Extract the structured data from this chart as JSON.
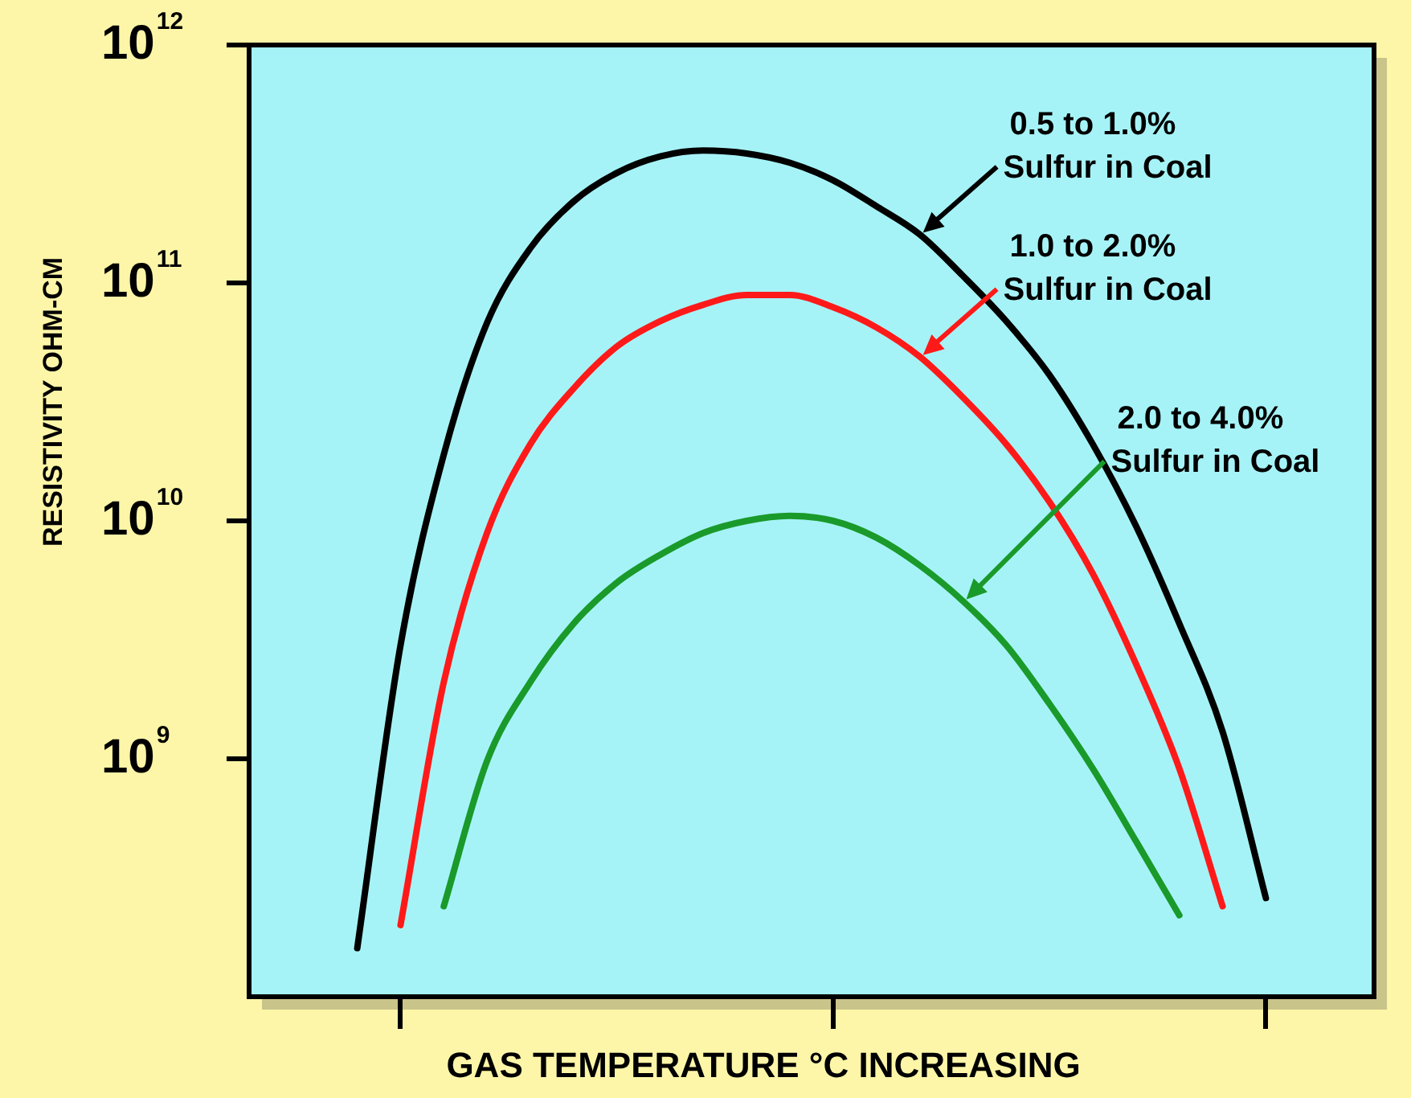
{
  "chart_data": {
    "type": "line",
    "xlabel": "GAS TEMPERATURE °C INCREASING",
    "ylabel": "RESISTIVITY OHM-CM",
    "categories": [
      null,
      null,
      null,
      null,
      null,
      null,
      null,
      null,
      null,
      null,
      null,
      null,
      null,
      null,
      null,
      null,
      null,
      null,
      null,
      null,
      null,
      null,
      null,
      null,
      null,
      null
    ],
    "series": [
      {
        "name": "0.5 to 1.0% Sulfur in Coal",
        "color": "#000000",
        "values": [
          null,
          null,
          160000000.0,
          3000000000.0,
          19000000000.0,
          68000000000.0,
          140000000000.0,
          220000000000.0,
          290000000000.0,
          340000000000.0,
          360000000000.0,
          350000000000.0,
          320000000000.0,
          270000000000.0,
          210000000000.0,
          160000000000.0,
          107000000000.0,
          69000000000.0,
          41000000000.0,
          21000000000.0,
          9500000000.0,
          3700000000.0,
          1300000000.0,
          260000000.0,
          null,
          null
        ]
      },
      {
        "name": "1.0 to 2.0% Sulfur in Coal",
        "color": "#ff1a1a",
        "values": [
          null,
          null,
          null,
          200000000.0,
          2100000000.0,
          8900000000.0,
          21000000000.0,
          36000000000.0,
          54000000000.0,
          69000000000.0,
          81000000000.0,
          89000000000.0,
          89000000000.0,
          79000000000.0,
          65000000000.0,
          49000000000.0,
          33000000000.0,
          21000000000.0,
          12000000000.0,
          6000000000.0,
          2500000000.0,
          910000000.0,
          240000000.0,
          null,
          null,
          null
        ]
      },
      {
        "name": "2.0 to 4.0% Sulfur in Coal",
        "color": "#1a9a2a",
        "values": [
          null,
          null,
          null,
          null,
          240000000.0,
          980000000.0,
          2100000000.0,
          3700000000.0,
          5500000000.0,
          7200000000.0,
          8900000000.0,
          10000000000.0,
          10500000000.0,
          10000000000.0,
          8500000000.0,
          6500000000.0,
          4600000000.0,
          3000000000.0,
          1700000000.0,
          910000000.0,
          450000000.0,
          220000000.0,
          null,
          null,
          null,
          null
        ]
      }
    ],
    "ylim": [
      100000000.0,
      1000000000000.0
    ],
    "yticks": [
      {
        "value": 1000000000.0,
        "label": "10$^{9}$"
      },
      {
        "value": 10000000000.0,
        "label": "10$^{10}$"
      },
      {
        "value": 100000000000.0,
        "label": "10$^{11}$"
      },
      {
        "value": 1000000000000.0,
        "label": "10$^{12}$"
      }
    ],
    "log": true,
    "grid": false,
    "legend": false,
    "marker": "none",
    "line_style": "solid"
  }
}
